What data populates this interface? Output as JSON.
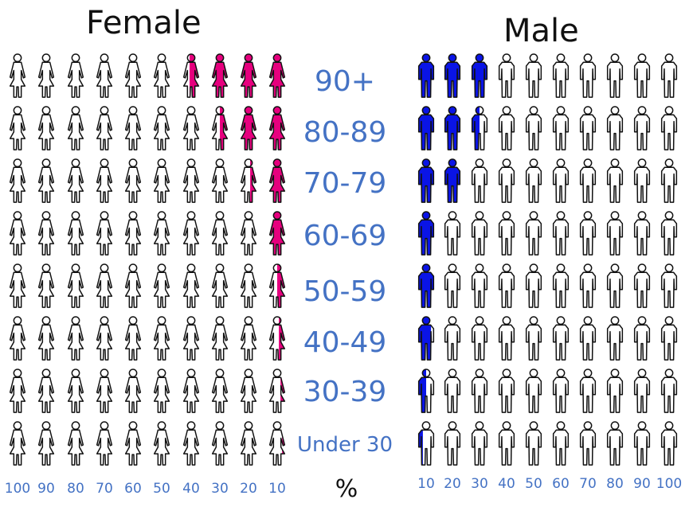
{
  "chart_data": {
    "type": "pictograph",
    "unit": "%",
    "icons_per_row": 10,
    "percent_per_icon": 10,
    "categories": [
      "90+",
      "80-89",
      "70-79",
      "60-69",
      "50-59",
      "40-49",
      "30-39",
      "Under 30"
    ],
    "series": [
      {
        "name": "Female",
        "color": "#e6007e",
        "fill_direction": "right-to-left",
        "values": [
          36,
          25,
          14,
          10,
          5,
          4,
          3,
          2
        ],
        "tick_labels": [
          "100",
          "90",
          "80",
          "70",
          "60",
          "50",
          "40",
          "30",
          "20",
          "10"
        ]
      },
      {
        "name": "Male",
        "color": "#0a14e6",
        "fill_direction": "left-to-right",
        "values": [
          30,
          25,
          20,
          10,
          10,
          8,
          5,
          3
        ],
        "tick_labels": [
          "10",
          "20",
          "30",
          "40",
          "50",
          "60",
          "70",
          "80",
          "90",
          "100"
        ]
      }
    ]
  },
  "outline_color": "#111111",
  "label_color": "#4472c4"
}
